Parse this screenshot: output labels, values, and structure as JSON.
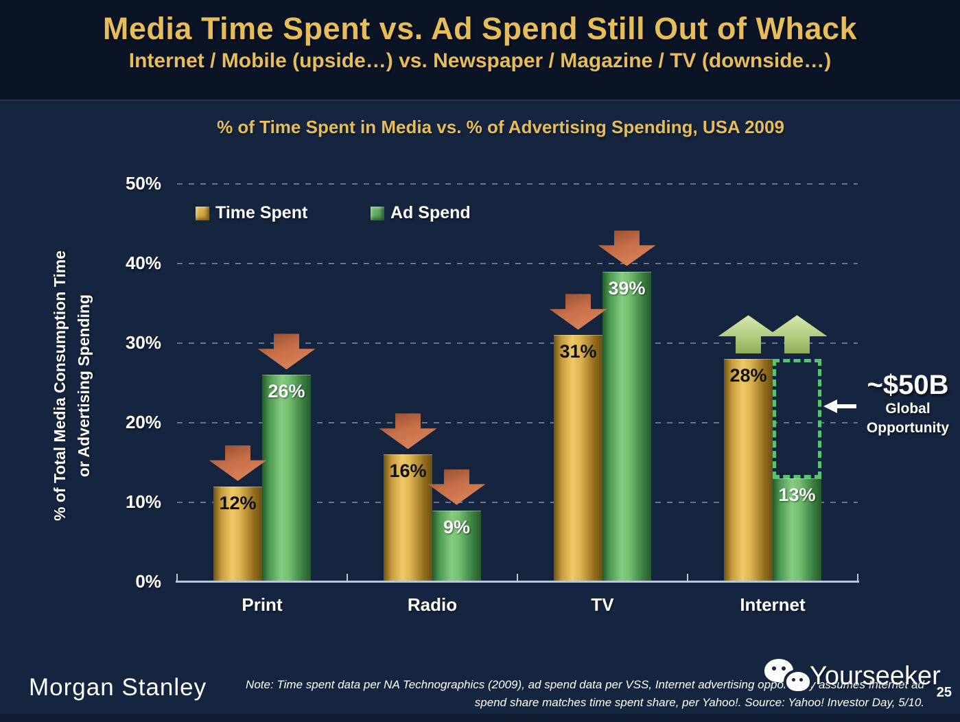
{
  "header": {
    "title": "Media Time Spent vs. Ad Spend Still Out of Whack",
    "subtitle": "Internet / Mobile (upside…) vs. Newspaper / Magazine / TV (downside…)"
  },
  "chart": {
    "title": "% of Time Spent in Media vs. % of Advertising Spending, USA 2009",
    "y_axis_title_line1": "% of Total Media Consumption Time",
    "y_axis_title_line2": "or Advertising Spending",
    "legend": [
      {
        "label": "Time Spent",
        "color": "#D9A93F"
      },
      {
        "label": "Ad Spend",
        "color": "#55AE63"
      }
    ]
  },
  "chart_data": {
    "type": "bar",
    "title": "% of Time Spent in Media vs. % of Advertising Spending, USA 2009",
    "categories": [
      "Print",
      "Radio",
      "TV",
      "Internet"
    ],
    "series": [
      {
        "name": "Time Spent",
        "values": [
          12,
          16,
          31,
          28
        ],
        "color": "#D9A93F"
      },
      {
        "name": "Ad Spend",
        "values": [
          26,
          9,
          39,
          13
        ],
        "color": "#55AE63"
      }
    ],
    "unit": "%",
    "ylabel": "% of Total Media Consumption Time or Advertising Spending",
    "ylim": [
      0,
      50
    ],
    "yticks": [
      0,
      10,
      20,
      30,
      40,
      50
    ],
    "grid": "dashed-horizontal",
    "legend_position": "top-left-inside",
    "trend_arrows": [
      [
        "down",
        "down"
      ],
      [
        "down",
        "down"
      ],
      [
        "down",
        "down"
      ],
      [
        "up",
        "up"
      ]
    ],
    "annotation": {
      "value": "~$50B",
      "line1": "Global",
      "line2": "Opportunity",
      "target": "Internet Ad Spend gap between 13% and 28%"
    }
  },
  "footer": {
    "brand": "Morgan Stanley",
    "note_line1": "Note: Time spent data per NA Technographics (2009), ad spend data per VSS, Internet advertising opportunity assumes Internet ad",
    "note_line2": "spend share matches time spent share, per Yahoo!. Source: Yahoo! Investor Day, 5/10.",
    "watermark": "Yourseeker",
    "page_number": "25"
  }
}
